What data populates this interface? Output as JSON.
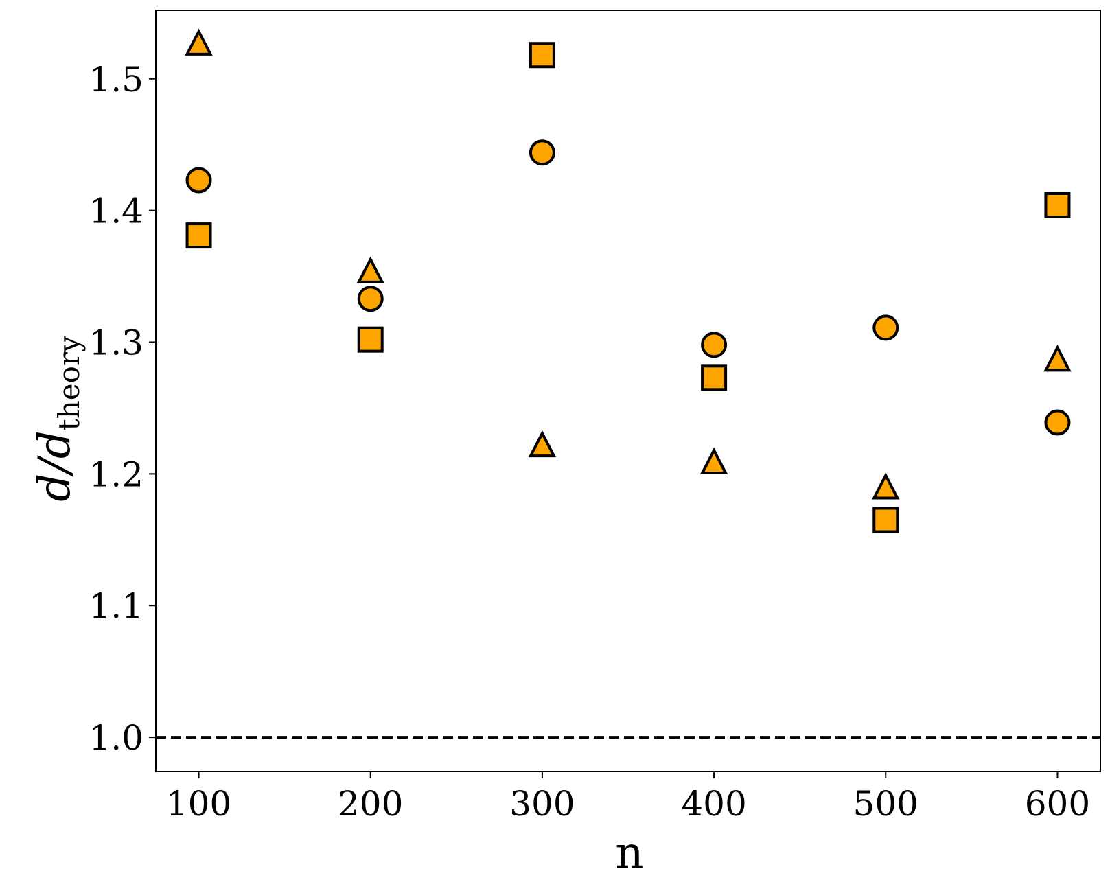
{
  "chart_data": {
    "type": "scatter",
    "xlabel": "n",
    "ylabel_main": "d/d",
    "ylabel_sub": "theory",
    "xlim": [
      75,
      625
    ],
    "ylim": [
      0.974,
      1.552
    ],
    "xticks": [
      100,
      200,
      300,
      400,
      500,
      600
    ],
    "xtick_labels": [
      "100",
      "200",
      "300",
      "400",
      "500",
      "600"
    ],
    "yticks": [
      1.0,
      1.1,
      1.2,
      1.3,
      1.4,
      1.5
    ],
    "ytick_labels": [
      "1.0",
      "1.1",
      "1.2",
      "1.3",
      "1.4",
      "1.5"
    ],
    "grid": false,
    "marker_fill": "#FFA500",
    "marker_edge": "#000000",
    "reference_line": {
      "y": 1.0,
      "style": "dashed",
      "color": "#000000"
    },
    "series": [
      {
        "marker": "circle",
        "x": [
          100,
          200,
          300,
          400,
          500,
          600
        ],
        "y": [
          1.423,
          1.333,
          1.444,
          1.298,
          1.311,
          1.239
        ]
      },
      {
        "marker": "square",
        "x": [
          100,
          200,
          300,
          400,
          500,
          600
        ],
        "y": [
          1.381,
          1.302,
          1.518,
          1.273,
          1.165,
          1.404
        ]
      },
      {
        "marker": "triangle",
        "x": [
          100,
          200,
          300,
          400,
          500,
          600
        ],
        "y": [
          1.526,
          1.353,
          1.221,
          1.208,
          1.189,
          1.286
        ]
      }
    ]
  }
}
